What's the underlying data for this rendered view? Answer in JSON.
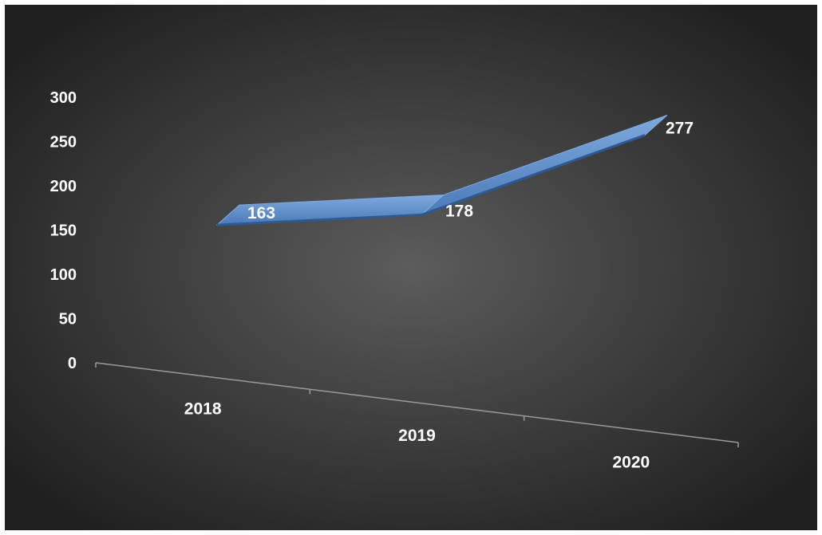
{
  "chart_data": {
    "type": "line",
    "title": "",
    "xlabel": "",
    "ylabel": "",
    "categories": [
      "2018",
      "2019",
      "2020"
    ],
    "series": [
      {
        "values": [
          163,
          178,
          277
        ]
      }
    ],
    "data_labels": [
      "163",
      "178",
      "277"
    ],
    "y_ticks": [
      "300",
      "250",
      "200",
      "150",
      "100",
      "50",
      "0"
    ],
    "ylim": [
      0,
      300
    ],
    "grid": false,
    "legend": "none",
    "style": "3d-ribbon",
    "colors": {
      "background_center": "#5c5c5c",
      "background_edge": "#1e1e1e",
      "ribbon_top": "#4a7ab8",
      "ribbon_edge": "#7fa9de",
      "ribbon_side": "#2e5a94",
      "axis": "#9a9a9a",
      "text": "#ffffff"
    }
  }
}
